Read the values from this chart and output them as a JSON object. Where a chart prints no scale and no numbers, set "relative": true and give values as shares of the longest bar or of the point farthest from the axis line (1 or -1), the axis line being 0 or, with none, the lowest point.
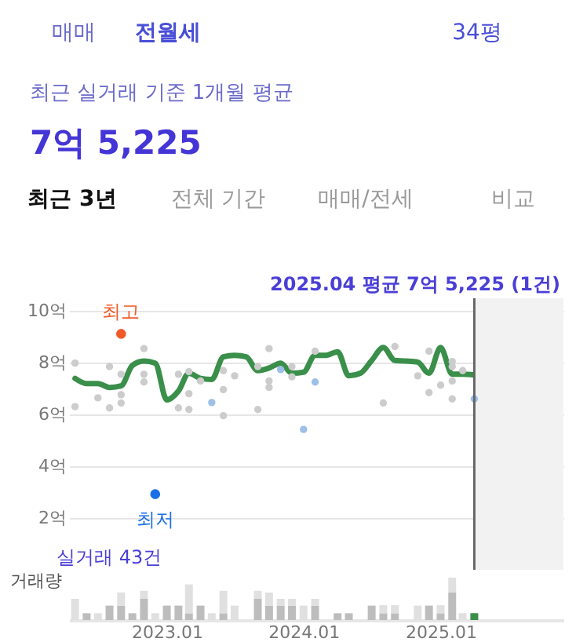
{
  "chart_data": [
    {
      "type": "line",
      "tick_labels": "y",
      "grid": "y",
      "legend": false,
      "annotations": [
        "매매",
        "전월세",
        "34평",
        "최근 실거래 기준 1개월 평균",
        "7억 5,225",
        "최근 3년",
        "전체 기간",
        "매매/전세",
        "비교",
        "실거래 43건",
        "2025.04 평균 7억 5,225 (1건)",
        {
          "text": "최고",
          "x": "2022-09",
          "y": 9.11
        },
        {
          "text": "최저",
          "x": "2022-12",
          "y": 2.92
        }
      ],
      "xlim": [
        "2022-04-15",
        "2025-11-25"
      ],
      "ylim": [
        0,
        10
      ],
      "yticks": [
        {
          "value": 2,
          "label": "2억"
        },
        {
          "value": 4,
          "label": "4억"
        },
        {
          "value": 6,
          "label": "6억"
        },
        {
          "value": 8,
          "label": "8억"
        },
        {
          "value": 10,
          "label": "10억"
        }
      ],
      "bands": [
        {
          "axis": "x",
          "from": "2025-04",
          "to": "2025-11-25",
          "color": "#f2f2f2"
        }
      ],
      "ref_lines": [
        {
          "axis": "x",
          "value": "2025-04",
          "color": "#666666",
          "line_style": "solid"
        }
      ],
      "series": [
        {
          "type": "scatter",
          "color": "#cccccc",
          "x": [
            "2022-05",
            "2022-05",
            "2022-07",
            "2022-08",
            "2022-08",
            "2022-09",
            "2022-09",
            "2022-09",
            "2022-11",
            "2022-11",
            "2022-11",
            "2023-02",
            "2023-02",
            "2023-03",
            "2023-03",
            "2023-03",
            "2023-04",
            "2023-06",
            "2023-06",
            "2023-06",
            "2023-07",
            "2023-09",
            "2023-09",
            "2023-10",
            "2023-10",
            "2023-10",
            "2023-12",
            "2023-12",
            "2024-02",
            "2024-08",
            "2024-09",
            "2024-11",
            "2024-12",
            "2024-12",
            "2025-01",
            "2025-02",
            "2025-02",
            "2025-02",
            "2025-02",
            "2025-03"
          ],
          "values": [
            7.98,
            6.3,
            6.64,
            7.85,
            6.25,
            7.55,
            6.76,
            6.44,
            8.54,
            7.55,
            7.25,
            7.55,
            6.25,
            7.65,
            6.8,
            6.19,
            7.29,
            7.69,
            6.96,
            5.95,
            7.49,
            7.85,
            6.19,
            8.54,
            7.29,
            7.04,
            7.85,
            7.45,
            8.44,
            6.44,
            8.62,
            7.49,
            8.44,
            6.84,
            7.13,
            8.04,
            7.85,
            7.29,
            6.6,
            7.69
          ]
        },
        {
          "type": "scatter",
          "color": "#9dbfe8",
          "x": [
            "2023-05",
            "2023-11",
            "2024-01",
            "2024-02",
            "2025-04"
          ],
          "values": [
            6.46,
            7.73,
            5.42,
            7.25,
            6.6
          ]
        },
        {
          "type": "scatter",
          "color": "#f05a28",
          "x": [
            "2022-09"
          ],
          "values": [
            9.11
          ]
        },
        {
          "type": "scatter",
          "color": "#1a6fe6",
          "x": [
            "2022-12"
          ],
          "values": [
            2.92
          ]
        },
        {
          "type": "line",
          "color": "#3a8f4a",
          "x": [
            "2022-05",
            "2022-06",
            "2022-07",
            "2022-08",
            "2022-09",
            "2022-10",
            "2022-11",
            "2022-12",
            "2023-01",
            "2023-02",
            "2023-03",
            "2023-04",
            "2023-05",
            "2023-06",
            "2023-07",
            "2023-08",
            "2023-09",
            "2023-10",
            "2023-11",
            "2023-12",
            "2024-01",
            "2024-02",
            "2024-03",
            "2024-04",
            "2024-05",
            "2024-06",
            "2024-07",
            "2024-08",
            "2024-09",
            "2024-10",
            "2024-11",
            "2024-12",
            "2025-01",
            "2025-02",
            "2025-03",
            "2025-04"
          ],
          "values": [
            7.39,
            7.19,
            7.19,
            7.04,
            7.1,
            7.89,
            8.06,
            7.98,
            6.56,
            6.9,
            7.59,
            7.39,
            7.35,
            8.22,
            8.28,
            8.22,
            7.69,
            7.79,
            7.98,
            7.59,
            7.63,
            8.28,
            8.28,
            8.42,
            7.49,
            7.59,
            8.08,
            8.58,
            8.08,
            8.06,
            8.02,
            7.59,
            8.58,
            7.55,
            7.55,
            7.5225
          ]
        }
      ]
    },
    {
      "type": "bar",
      "stacked": true,
      "relative": true,
      "tick_labels": "x",
      "grid": false,
      "legend": false,
      "ylabel": "거래량",
      "x": [
        "2022-05",
        "2022-06",
        "2022-07",
        "2022-08",
        "2022-09",
        "2022-10",
        "2022-11",
        "2022-12",
        "2023-01",
        "2023-02",
        "2023-03",
        "2023-04",
        "2023-05",
        "2023-06",
        "2023-07",
        "2023-08",
        "2023-09",
        "2023-10",
        "2023-11",
        "2023-12",
        "2024-01",
        "2024-02",
        "2024-03",
        "2024-04",
        "2024-05",
        "2024-06",
        "2024-07",
        "2024-08",
        "2024-09",
        "2024-10",
        "2024-11",
        "2024-12",
        "2025-01",
        "2025-02",
        "2025-03",
        "2025-04"
      ],
      "xlim": [
        "2022-04-15",
        "2025-11-25"
      ],
      "xticks": [
        {
          "value": "2023-01",
          "label": "2023.01"
        },
        {
          "value": "2024-01",
          "label": "2024.01"
        },
        {
          "value": "2025-01",
          "label": "2025.01"
        }
      ],
      "series": [
        {
          "color": "#bdbdbd",
          "values": [
            null,
            0.16,
            null,
            0.34,
            0.34,
            0.16,
            0.5,
            null,
            0.34,
            0.34,
            0.16,
            0.34,
            null,
            0.16,
            null,
            null,
            0.5,
            0.34,
            0.34,
            0.34,
            null,
            0.34,
            null,
            0.16,
            0.16,
            null,
            0.34,
            0.16,
            0.16,
            null,
            null,
            0.34,
            0.16,
            0.65,
            null,
            null
          ]
        },
        {
          "color": "#e0e0e0",
          "values": [
            0.5,
            null,
            0.16,
            null,
            0.31,
            null,
            0.19,
            0.16,
            null,
            null,
            0.68,
            null,
            0.16,
            0.53,
            0.34,
            null,
            0.19,
            0.31,
            0.16,
            0.16,
            0.34,
            0.16,
            null,
            null,
            null,
            null,
            null,
            0.19,
            0.19,
            null,
            0.34,
            null,
            0.19,
            0.35,
            0.16,
            null
          ]
        },
        {
          "color": "#3a8f4a",
          "values": [
            null,
            null,
            null,
            null,
            null,
            null,
            null,
            null,
            null,
            null,
            null,
            null,
            null,
            null,
            null,
            null,
            null,
            null,
            null,
            null,
            null,
            null,
            null,
            null,
            null,
            null,
            null,
            null,
            null,
            null,
            null,
            null,
            null,
            null,
            null,
            0.16
          ]
        }
      ]
    }
  ]
}
